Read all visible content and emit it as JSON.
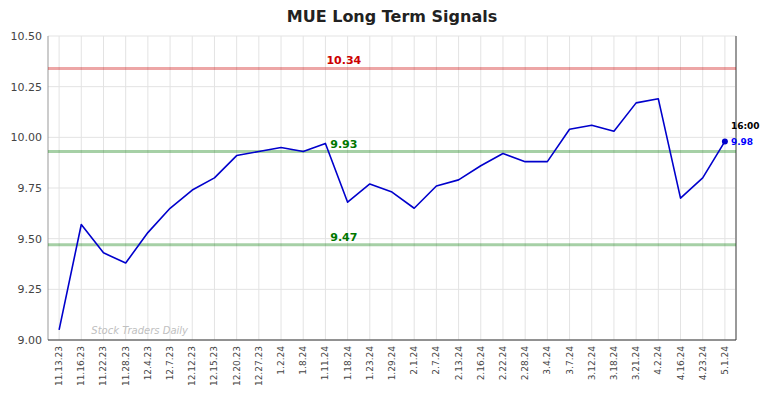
{
  "chart_data": {
    "type": "line",
    "title": "MUE Long Term Signals",
    "categories": [
      "11.13.23",
      "11.16.23",
      "11.22.23",
      "11.28.23",
      "12.4.23",
      "12.7.23",
      "12.12.23",
      "12.15.23",
      "12.20.23",
      "12.27.23",
      "1.2.24",
      "1.8.24",
      "1.11.24",
      "1.18.24",
      "1.23.24",
      "1.29.24",
      "2.1.24",
      "2.7.24",
      "2.13.24",
      "2.16.24",
      "2.22.24",
      "2.28.24",
      "3.4.24",
      "3.7.24",
      "3.12.24",
      "3.18.24",
      "3.21.24",
      "4.2.24",
      "4.16.24",
      "4.23.24",
      "5.1.24"
    ],
    "values": [
      9.05,
      9.57,
      9.43,
      9.38,
      9.53,
      9.65,
      9.74,
      9.8,
      9.91,
      9.93,
      9.95,
      9.93,
      9.97,
      9.68,
      9.77,
      9.73,
      9.65,
      9.76,
      9.79,
      9.86,
      9.92,
      9.88,
      9.88,
      10.04,
      10.06,
      10.03,
      10.17,
      10.19,
      9.7,
      9.8,
      9.98
    ],
    "color": "#0000cc",
    "ylim": [
      9.0,
      10.5
    ],
    "yticks": [
      {
        "value": 9.0,
        "label": "9.00"
      },
      9.25,
      {
        "value": 9.5,
        "label": "9.50"
      },
      9.75,
      {
        "value": 10.0,
        "label": "10.00"
      },
      10.25,
      {
        "value": 10.5,
        "label": "10.50"
      }
    ],
    "grid": true,
    "reference_lines": [
      {
        "value": 10.34,
        "label": "10.34",
        "color": "#cc0000"
      },
      {
        "value": 9.93,
        "label": "9.93",
        "color": "#007700"
      },
      {
        "value": 9.47,
        "label": "9.47",
        "color": "#007700"
      }
    ],
    "annotations": [
      {
        "text": "16:00"
      },
      {
        "text": "9.98",
        "value": 9.98,
        "color": "#0000ff"
      },
      {
        "text": "Stock Traders Daily"
      }
    ]
  }
}
